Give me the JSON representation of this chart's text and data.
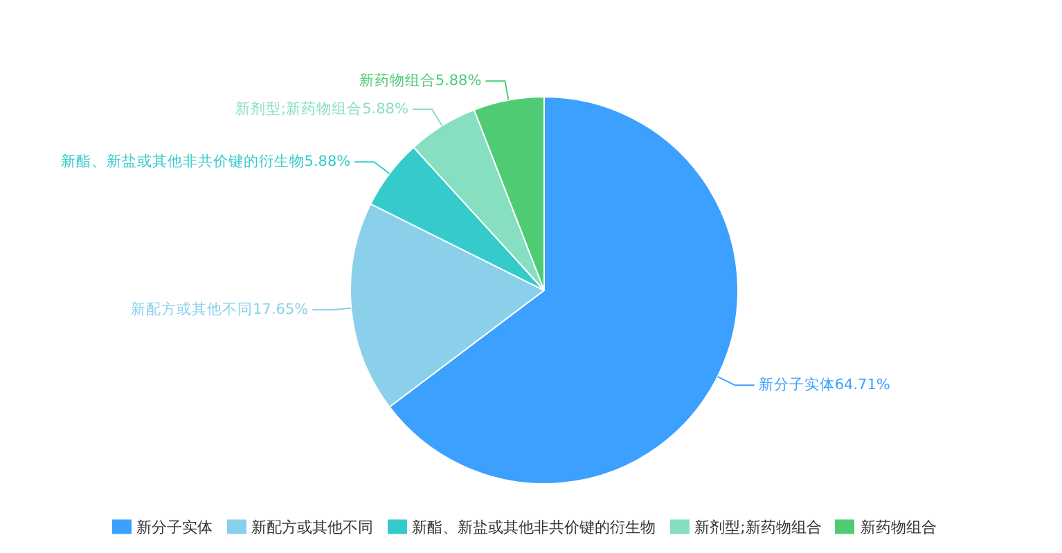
{
  "chart_data": {
    "type": "pie",
    "categories": [
      "新分子实体",
      "新配方或其他不同",
      "新酯、新盐或其他非共价键的衍生物",
      "新剂型;新药物组合",
      "新药物组合"
    ],
    "values": [
      64.71,
      17.65,
      5.88,
      5.88,
      5.88
    ],
    "value_labels": [
      "64.71%",
      "17.65%",
      "5.88%",
      "5.88%",
      "5.88%"
    ],
    "colors": [
      "#3ca0ff",
      "#8bd0eb",
      "#36cbcb",
      "#86dfc0",
      "#4ecb73"
    ],
    "legend": "bottom"
  }
}
